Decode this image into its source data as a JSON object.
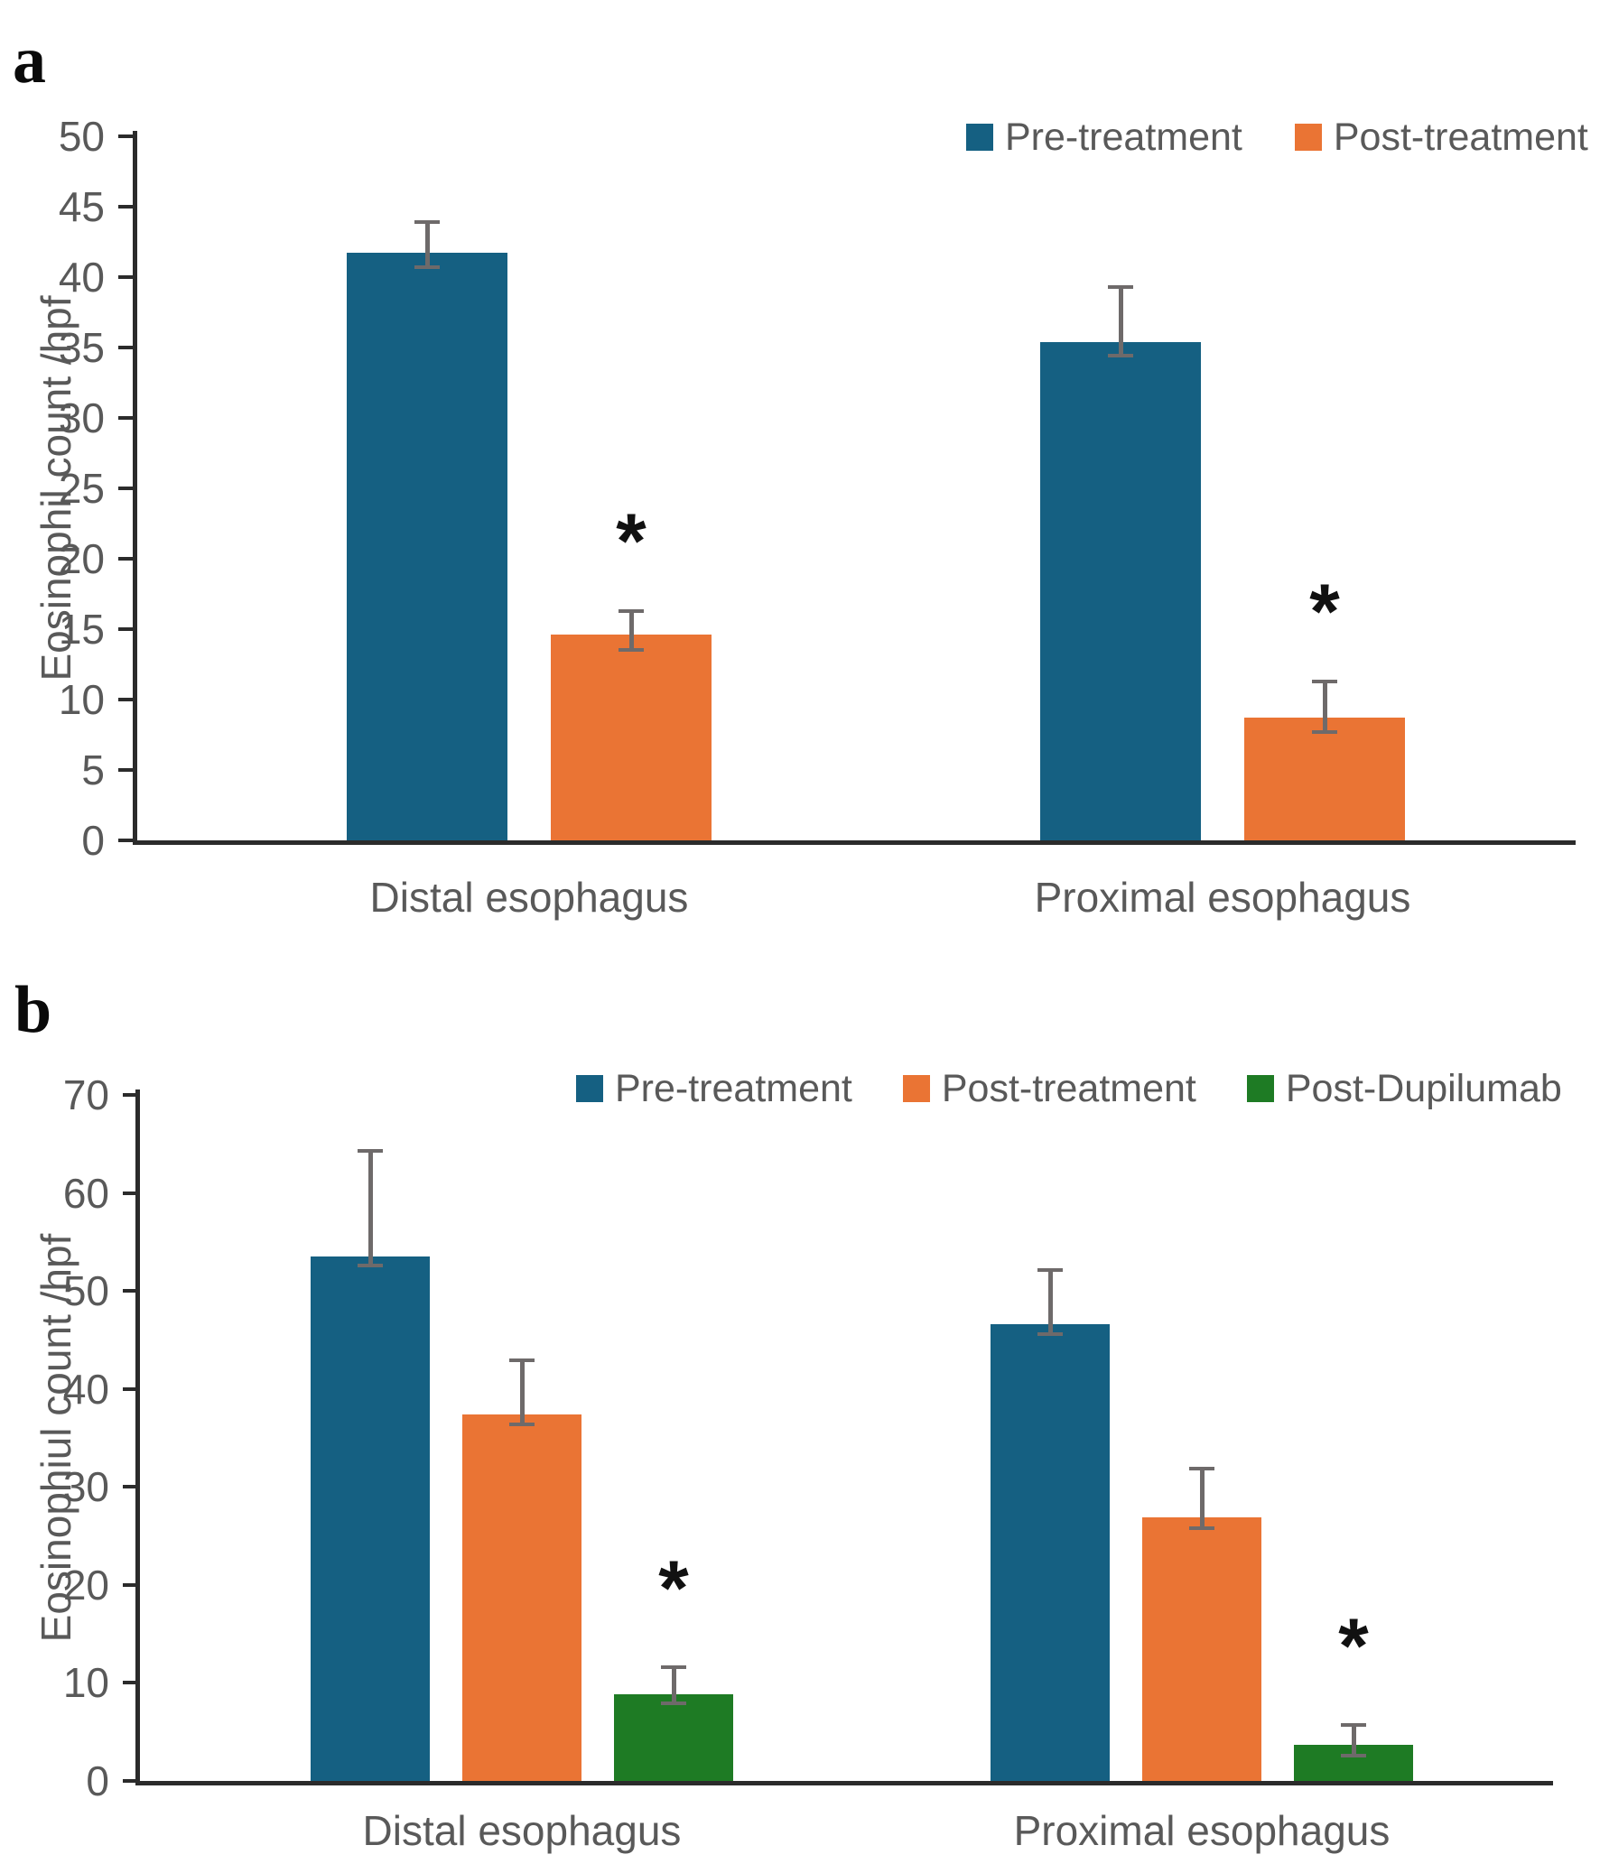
{
  "figure": {
    "panels": [
      {
        "label": "a"
      },
      {
        "label": "b"
      }
    ]
  },
  "colors": {
    "pre_treatment": "#156082",
    "post_treatment": "#EA7434",
    "post_dupilumab": "#1E7B24",
    "text_gray": "#595959",
    "axis": "#2B2B2B",
    "error_bar": "#6E6A6A",
    "significance": "#111111",
    "background": "#FFFFFF"
  },
  "chart_data": [
    {
      "type": "bar",
      "panel": "a",
      "title": "",
      "xlabel": "",
      "ylabel": "Eosinophil count /hpf",
      "ylim": [
        0,
        50
      ],
      "yticks": [
        0,
        5,
        10,
        15,
        20,
        25,
        30,
        35,
        40,
        45,
        50
      ],
      "grid": false,
      "legend_position": "top-right",
      "categories": [
        "Distal esophagus",
        "Proximal esophagus"
      ],
      "sig_marker": "*",
      "series": [
        {
          "name": "Pre-treatment",
          "color": "#156082",
          "values": [
            41.7,
            35.4
          ],
          "err_up": [
            2.2,
            3.9
          ],
          "err_down": [
            1.0,
            1.0
          ],
          "sig": [
            false,
            false
          ]
        },
        {
          "name": "Post-treatment",
          "color": "#EA7434",
          "values": [
            14.6,
            8.7
          ],
          "err_up": [
            1.7,
            2.6
          ],
          "err_down": [
            1.1,
            1.0
          ],
          "sig": [
            true,
            true
          ]
        }
      ]
    },
    {
      "type": "bar",
      "panel": "b",
      "title": "",
      "xlabel": "",
      "ylabel": "Eosinophiul count /hpf",
      "ylim": [
        0,
        70
      ],
      "yticks": [
        0,
        10,
        20,
        30,
        40,
        50,
        60,
        70
      ],
      "grid": false,
      "legend_position": "top-right",
      "categories": [
        "Distal esophagus",
        "Proximal esophagus"
      ],
      "sig_marker": "*",
      "series": [
        {
          "name": "Pre-treatment",
          "color": "#156082",
          "values": [
            53.5,
            46.6
          ],
          "err_up": [
            10.8,
            5.5
          ],
          "err_down": [
            0.9,
            1.0
          ],
          "sig": [
            false,
            false
          ]
        },
        {
          "name": "Post-treatment",
          "color": "#EA7434",
          "values": [
            37.4,
            26.9
          ],
          "err_up": [
            5.5,
            5.0
          ],
          "err_down": [
            1.0,
            1.1
          ],
          "sig": [
            false,
            false
          ]
        },
        {
          "name": "Post-Dupilumab",
          "color": "#1E7B24",
          "values": [
            8.8,
            3.7
          ],
          "err_up": [
            2.8,
            2.0
          ],
          "err_down": [
            0.9,
            1.1
          ],
          "sig": [
            true,
            true
          ]
        }
      ]
    }
  ]
}
